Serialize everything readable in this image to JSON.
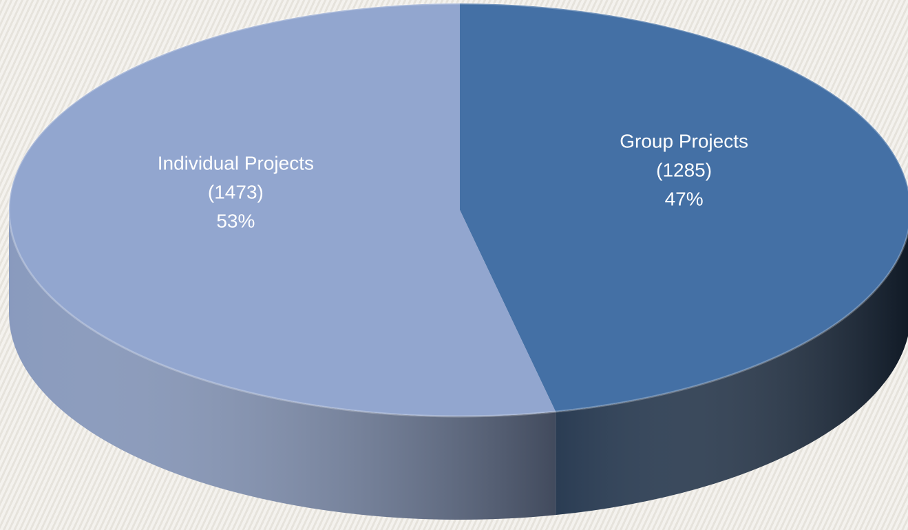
{
  "chart_data": {
    "type": "pie3d",
    "categories": [
      "Group Projects",
      "Individual Projects"
    ],
    "values": [
      1285,
      1473
    ],
    "value_labels": [
      "(1285)",
      "(1473)"
    ],
    "percentages": [
      47,
      53
    ],
    "percentage_labels": [
      "47%",
      "53%"
    ],
    "colors": [
      "#4470a5",
      "#92a6cf"
    ]
  }
}
